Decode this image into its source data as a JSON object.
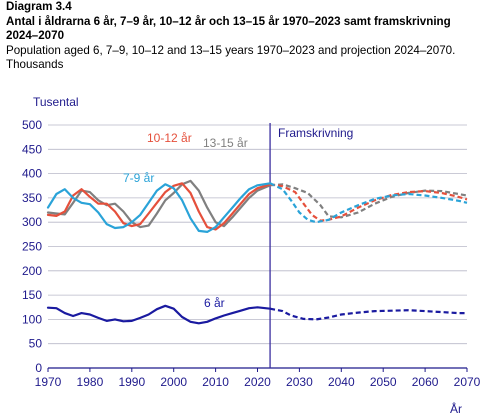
{
  "header": {
    "diagram_label": "Diagram 3.4",
    "title_sv_line1": "Antal i åldrarna 6 år, 7–9 år, 10–12 år och 13–15 år 1970–2023 samt framskrivning",
    "title_sv_line2": "2024–2070",
    "title_en_line1": "Population aged 6, 7–9, 10–12 and 13–15 years 1970–2023 and projection 2024–2070.",
    "title_en_line2": "Thousands"
  },
  "chart_data": {
    "type": "line",
    "ylabel": "Tusental",
    "xlabel": "År",
    "xlim": [
      1970,
      2070
    ],
    "ylim": [
      0,
      500
    ],
    "x_ticks": [
      "1970",
      "1980",
      "1990",
      "2000",
      "2010",
      "2020",
      "2030",
      "2040",
      "2050",
      "2060",
      "2070"
    ],
    "y_ticks": [
      "0",
      "50",
      "100",
      "150",
      "200",
      "250",
      "300",
      "350",
      "400",
      "450",
      "500"
    ],
    "grid": "horizontal",
    "projection_start": 2023,
    "projection_label": "Framskrivning",
    "colors": {
      "axes": "#1f1a8c",
      "grid": "#b8b8c8",
      "divider": "#3a2ea0"
    },
    "series": [
      {
        "name": "13-15 år",
        "color": "#808080",
        "historical": [
          [
            1970,
            320
          ],
          [
            1972,
            318
          ],
          [
            1974,
            316
          ],
          [
            1976,
            340
          ],
          [
            1978,
            365
          ],
          [
            1980,
            362
          ],
          [
            1982,
            345
          ],
          [
            1984,
            335
          ],
          [
            1986,
            338
          ],
          [
            1988,
            322
          ],
          [
            1990,
            300
          ],
          [
            1992,
            290
          ],
          [
            1994,
            293
          ],
          [
            1996,
            318
          ],
          [
            1998,
            345
          ],
          [
            2000,
            360
          ],
          [
            2002,
            378
          ],
          [
            2004,
            385
          ],
          [
            2006,
            365
          ],
          [
            2008,
            330
          ],
          [
            2010,
            300
          ],
          [
            2012,
            292
          ],
          [
            2014,
            310
          ],
          [
            2016,
            330
          ],
          [
            2018,
            350
          ],
          [
            2020,
            365
          ],
          [
            2023,
            376
          ]
        ],
        "projection": [
          [
            2023,
            376
          ],
          [
            2026,
            378
          ],
          [
            2029,
            370
          ],
          [
            2032,
            360
          ],
          [
            2035,
            335
          ],
          [
            2037,
            312
          ],
          [
            2040,
            310
          ],
          [
            2044,
            320
          ],
          [
            2048,
            338
          ],
          [
            2052,
            352
          ],
          [
            2056,
            360
          ],
          [
            2060,
            365
          ],
          [
            2064,
            364
          ],
          [
            2068,
            358
          ],
          [
            2070,
            355
          ]
        ]
      },
      {
        "name": "10-12 år",
        "color": "#e5503c",
        "historical": [
          [
            1970,
            315
          ],
          [
            1972,
            313
          ],
          [
            1974,
            322
          ],
          [
            1976,
            355
          ],
          [
            1978,
            368
          ],
          [
            1980,
            352
          ],
          [
            1982,
            338
          ],
          [
            1984,
            338
          ],
          [
            1986,
            322
          ],
          [
            1988,
            298
          ],
          [
            1990,
            292
          ],
          [
            1992,
            296
          ],
          [
            1994,
            318
          ],
          [
            1996,
            340
          ],
          [
            1998,
            362
          ],
          [
            2000,
            375
          ],
          [
            2002,
            380
          ],
          [
            2004,
            360
          ],
          [
            2006,
            322
          ],
          [
            2008,
            290
          ],
          [
            2010,
            285
          ],
          [
            2012,
            298
          ],
          [
            2014,
            318
          ],
          [
            2016,
            338
          ],
          [
            2018,
            358
          ],
          [
            2020,
            370
          ],
          [
            2023,
            378
          ]
        ],
        "projection": [
          [
            2023,
            378
          ],
          [
            2026,
            374
          ],
          [
            2029,
            362
          ],
          [
            2031,
            338
          ],
          [
            2033,
            315
          ],
          [
            2035,
            303
          ],
          [
            2037,
            305
          ],
          [
            2040,
            312
          ],
          [
            2044,
            330
          ],
          [
            2048,
            345
          ],
          [
            2052,
            356
          ],
          [
            2056,
            362
          ],
          [
            2060,
            364
          ],
          [
            2064,
            360
          ],
          [
            2068,
            352
          ],
          [
            2070,
            347
          ]
        ]
      },
      {
        "name": "7-9 år",
        "color": "#2aa3d8",
        "historical": [
          [
            1970,
            330
          ],
          [
            1972,
            358
          ],
          [
            1974,
            368
          ],
          [
            1976,
            350
          ],
          [
            1978,
            340
          ],
          [
            1980,
            337
          ],
          [
            1982,
            320
          ],
          [
            1984,
            296
          ],
          [
            1986,
            288
          ],
          [
            1988,
            290
          ],
          [
            1990,
            300
          ],
          [
            1992,
            315
          ],
          [
            1994,
            340
          ],
          [
            1996,
            365
          ],
          [
            1998,
            378
          ],
          [
            2000,
            370
          ],
          [
            2002,
            345
          ],
          [
            2004,
            308
          ],
          [
            2006,
            282
          ],
          [
            2008,
            280
          ],
          [
            2010,
            290
          ],
          [
            2012,
            310
          ],
          [
            2014,
            330
          ],
          [
            2016,
            350
          ],
          [
            2018,
            368
          ],
          [
            2020,
            376
          ],
          [
            2023,
            380
          ]
        ],
        "projection": [
          [
            2023,
            380
          ],
          [
            2026,
            368
          ],
          [
            2028,
            345
          ],
          [
            2030,
            320
          ],
          [
            2032,
            305
          ],
          [
            2034,
            300
          ],
          [
            2037,
            305
          ],
          [
            2040,
            320
          ],
          [
            2044,
            335
          ],
          [
            2048,
            348
          ],
          [
            2052,
            355
          ],
          [
            2056,
            358
          ],
          [
            2060,
            355
          ],
          [
            2064,
            350
          ],
          [
            2068,
            344
          ],
          [
            2070,
            340
          ]
        ]
      },
      {
        "name": "6 år",
        "color": "#1a1aa0",
        "historical": [
          [
            1970,
            124
          ],
          [
            1972,
            123
          ],
          [
            1974,
            113
          ],
          [
            1976,
            107
          ],
          [
            1978,
            113
          ],
          [
            1980,
            110
          ],
          [
            1982,
            103
          ],
          [
            1984,
            97
          ],
          [
            1986,
            100
          ],
          [
            1988,
            96
          ],
          [
            1990,
            97
          ],
          [
            1992,
            103
          ],
          [
            1994,
            110
          ],
          [
            1996,
            121
          ],
          [
            1998,
            128
          ],
          [
            2000,
            122
          ],
          [
            2002,
            105
          ],
          [
            2004,
            95
          ],
          [
            2006,
            92
          ],
          [
            2008,
            95
          ],
          [
            2010,
            102
          ],
          [
            2012,
            108
          ],
          [
            2014,
            113
          ],
          [
            2016,
            118
          ],
          [
            2018,
            123
          ],
          [
            2020,
            125
          ],
          [
            2023,
            122
          ]
        ],
        "projection": [
          [
            2023,
            122
          ],
          [
            2026,
            117
          ],
          [
            2028,
            108
          ],
          [
            2031,
            101
          ],
          [
            2034,
            100
          ],
          [
            2037,
            104
          ],
          [
            2040,
            110
          ],
          [
            2044,
            114
          ],
          [
            2048,
            117
          ],
          [
            2052,
            118
          ],
          [
            2056,
            119
          ],
          [
            2060,
            117
          ],
          [
            2064,
            115
          ],
          [
            2068,
            113
          ],
          [
            2070,
            113
          ]
        ]
      }
    ],
    "series_label_positions": [
      {
        "series": "13-15 år"
      },
      {
        "series": "10-12 år"
      },
      {
        "series": "7-9 år"
      },
      {
        "series": "6 år"
      }
    ]
  }
}
